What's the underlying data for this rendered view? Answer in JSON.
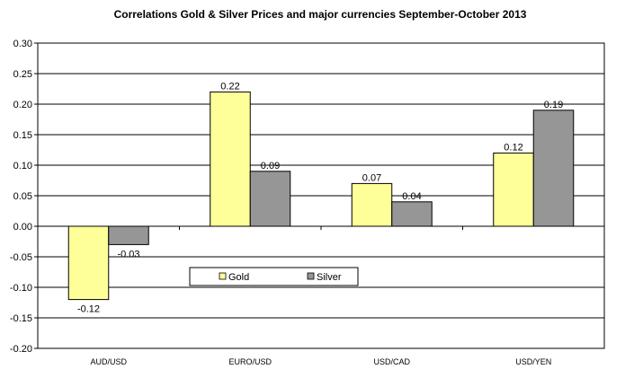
{
  "chart_data": {
    "type": "bar",
    "title": "Correlations Gold & Silver Prices and major currencies September-October 2013",
    "categories": [
      "AUD/USD",
      "EURO/USD",
      "USD/CAD",
      "USD/YEN"
    ],
    "series": [
      {
        "name": "Gold",
        "values": [
          -0.12,
          0.22,
          0.07,
          0.12
        ],
        "labels": [
          "-0.12",
          "0.22",
          "0.07",
          "0.12"
        ],
        "color": "#FFFF99"
      },
      {
        "name": "Silver",
        "values": [
          -0.03,
          0.09,
          0.04,
          0.19
        ],
        "labels": [
          "-0.03",
          "0.09",
          "0.04",
          "0.19"
        ],
        "color": "#969696"
      }
    ],
    "ylim": [
      -0.2,
      0.3
    ],
    "yticks": [
      "0.30",
      "0.25",
      "0.20",
      "0.15",
      "0.10",
      "0.05",
      "0.00",
      "-0.05",
      "-0.10",
      "-0.15",
      "-0.20"
    ],
    "grid": true,
    "legend": "bottom-center inside plot"
  }
}
